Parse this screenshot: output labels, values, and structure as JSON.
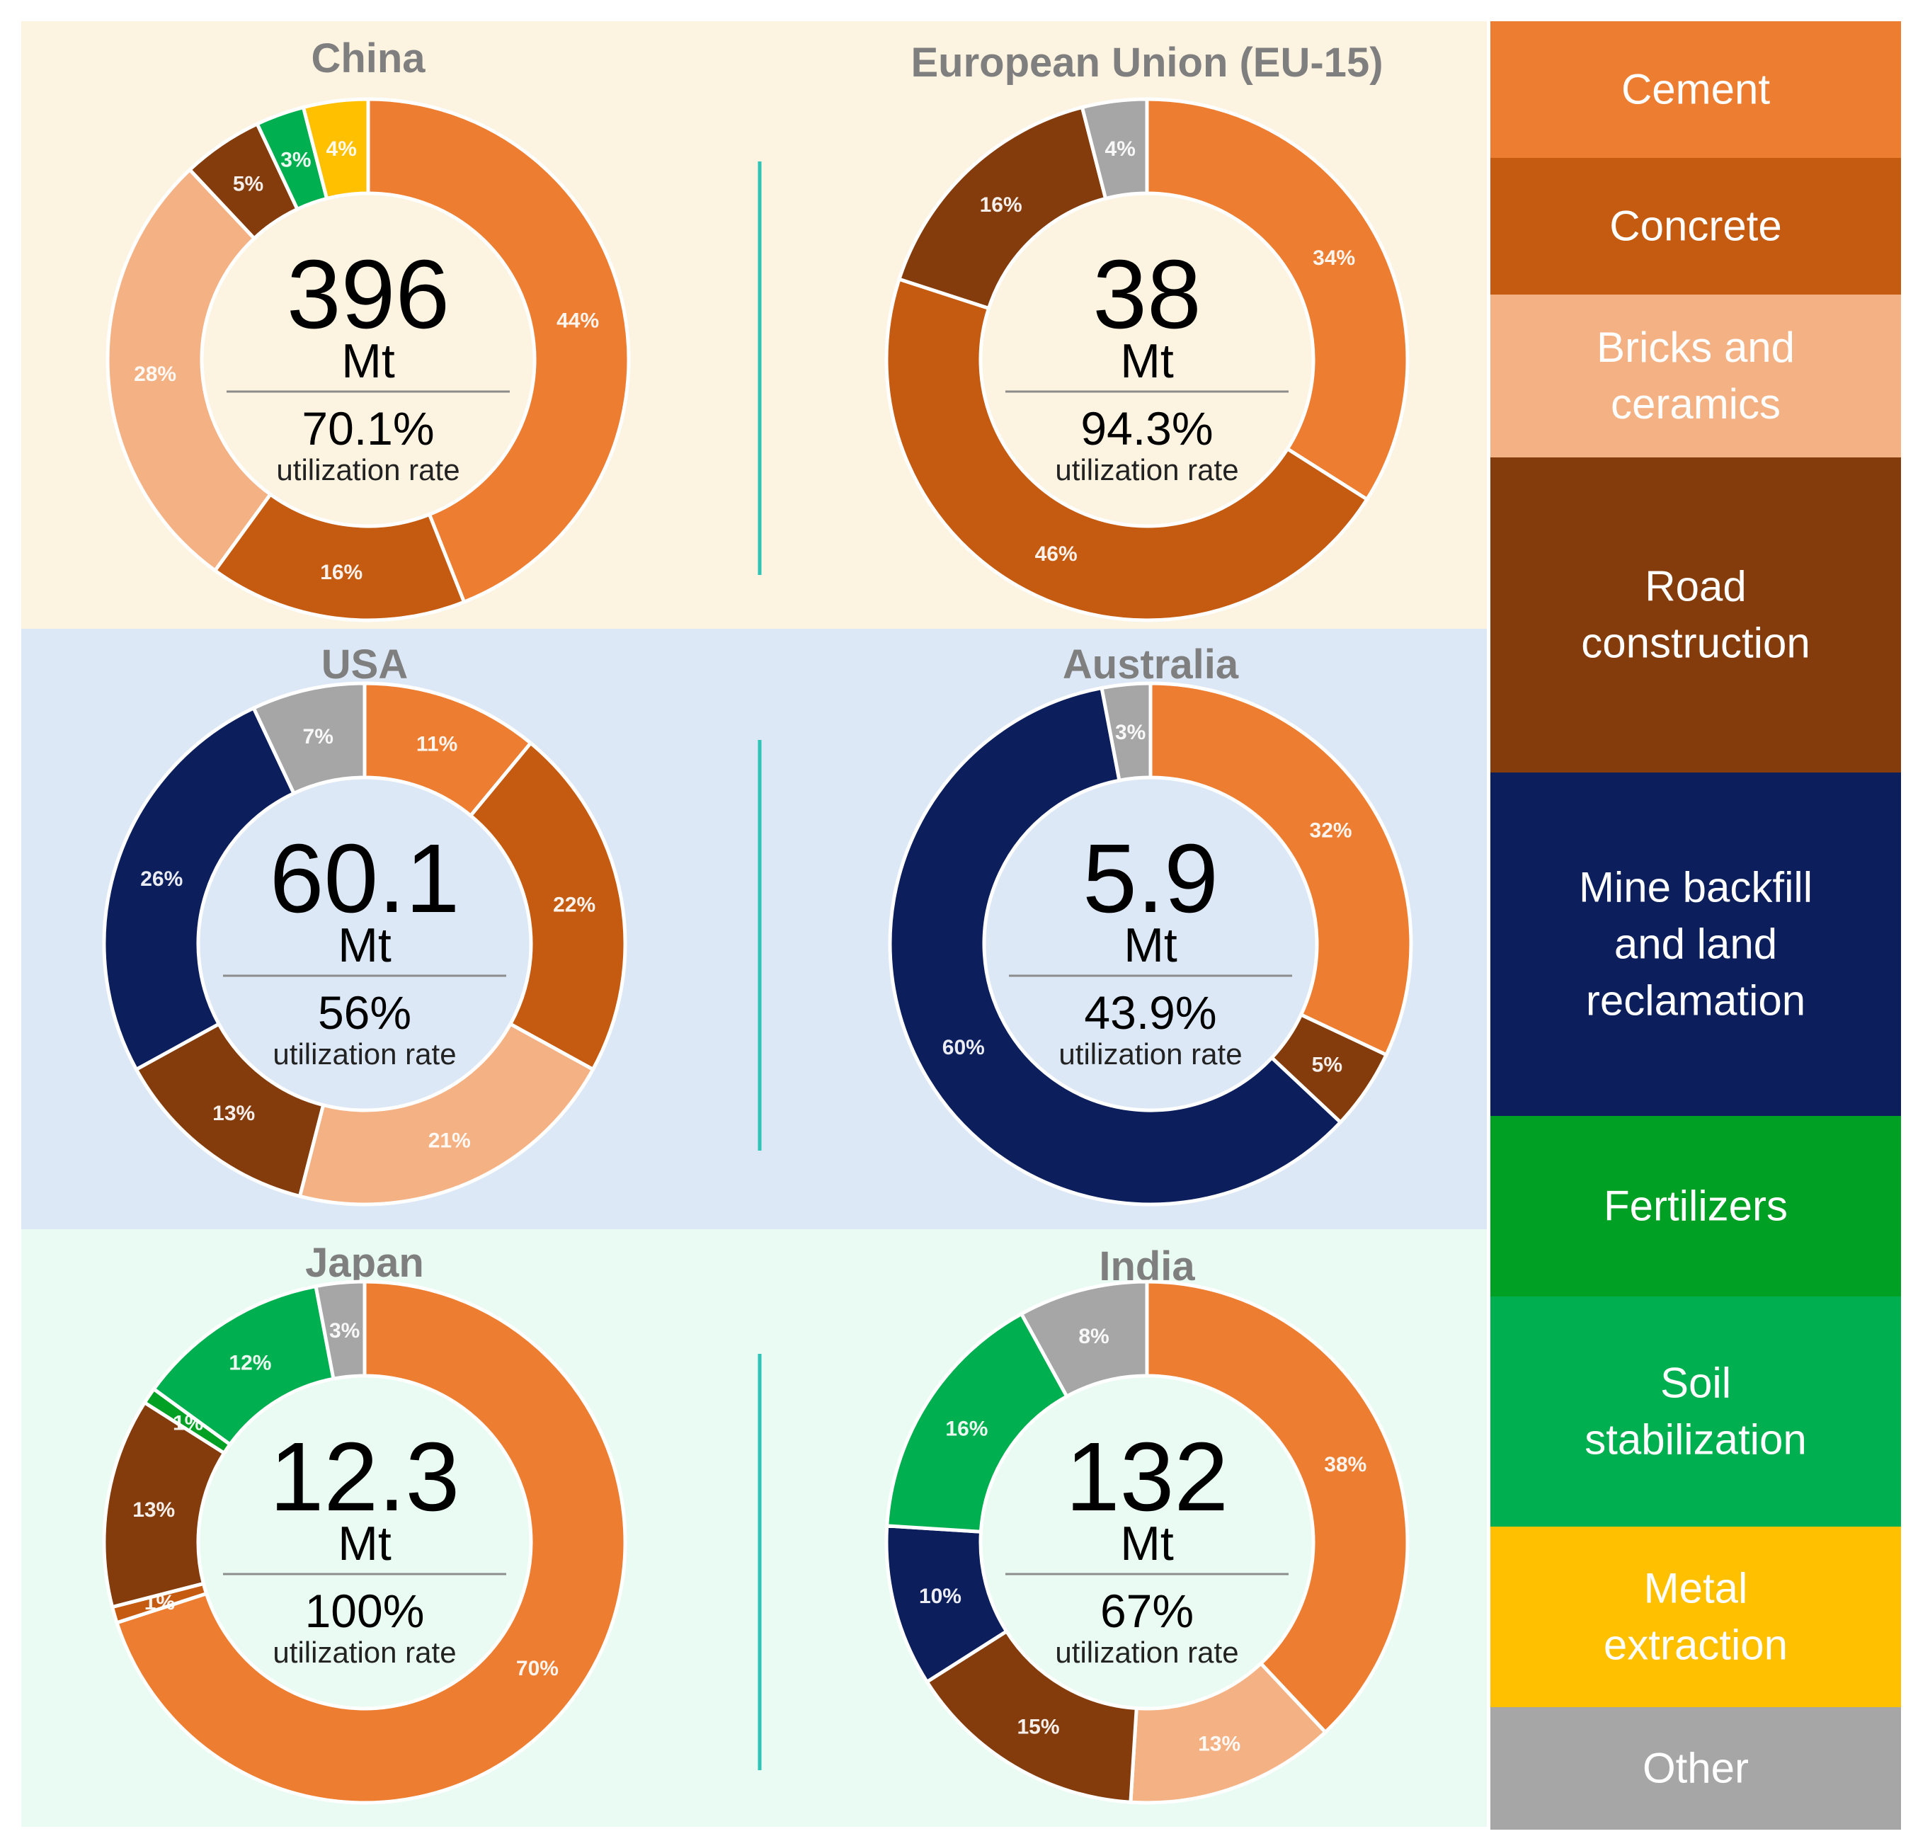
{
  "colors": {
    "Cement": "#ed7d31",
    "Concrete": "#c55a11",
    "Bricks and ceramics": "#f4b183",
    "Road construction": "#843c0c",
    "Mine backfill and land reclamation": "#0c1f5c",
    "Fertilizers": "#00a024",
    "Soil stabilization": "#00b050",
    "Metal extraction": "#ffc000",
    "Other": "#a6a6a6",
    "band_top": "#fdf3e1",
    "band_middle": "#dde8f6",
    "band_bottom": "#e9fbf3",
    "divider": "#2ec4b6",
    "title_text": "#7f7f7f",
    "legend_text": "#ffffff"
  },
  "legend": [
    {
      "category": "Cement",
      "lines": [
        "Cement"
      ]
    },
    {
      "category": "Concrete",
      "lines": [
        "Concrete"
      ]
    },
    {
      "category": "Bricks and ceramics",
      "lines": [
        "Bricks and",
        "ceramics"
      ]
    },
    {
      "category": "Road construction",
      "lines": [
        "Road",
        "construction"
      ]
    },
    {
      "category": "Mine backfill and land reclamation",
      "lines": [
        "Mine backfill",
        "and land",
        "reclamation"
      ]
    },
    {
      "category": "Fertilizers",
      "lines": [
        "Fertilizers"
      ]
    },
    {
      "category": "Soil stabilization",
      "lines": [
        "Soil",
        "stabilization"
      ]
    },
    {
      "category": "Metal extraction",
      "lines": [
        "Metal",
        "extraction"
      ]
    },
    {
      "category": "Other",
      "lines": [
        "Other"
      ]
    }
  ],
  "chart_data": [
    {
      "type": "pie",
      "title": "China",
      "total": "396",
      "unit": "Mt",
      "rate": "70.1%",
      "rate_label": "utilization rate",
      "slices": [
        {
          "category": "Cement",
          "value": 44,
          "label": "44%"
        },
        {
          "category": "Concrete",
          "value": 16,
          "label": "16%"
        },
        {
          "category": "Bricks and ceramics",
          "value": 28,
          "label": "28%"
        },
        {
          "category": "Road construction",
          "value": 5,
          "label": "5%"
        },
        {
          "category": "Soil stabilization",
          "value": 3,
          "label": "3%"
        },
        {
          "category": "Metal extraction",
          "value": 4,
          "label": "4%"
        }
      ]
    },
    {
      "type": "pie",
      "title": "European Union (EU-15)",
      "total": "38",
      "unit": "Mt",
      "rate": "94.3%",
      "rate_label": "utilization rate",
      "slices": [
        {
          "category": "Cement",
          "value": 34,
          "label": "34%"
        },
        {
          "category": "Concrete",
          "value": 46,
          "label": "46%"
        },
        {
          "category": "Road construction",
          "value": 16,
          "label": "16%"
        },
        {
          "category": "Other",
          "value": 4,
          "label": "4%"
        }
      ]
    },
    {
      "type": "pie",
      "title": "USA",
      "total": "60.1",
      "unit": "Mt",
      "rate": "56%",
      "rate_label": "utilization rate",
      "slices": [
        {
          "category": "Cement",
          "value": 11,
          "label": "11%"
        },
        {
          "category": "Concrete",
          "value": 22,
          "label": "22%"
        },
        {
          "category": "Bricks and ceramics",
          "value": 21,
          "label": "21%"
        },
        {
          "category": "Road construction",
          "value": 13,
          "label": "13%"
        },
        {
          "category": "Mine backfill and land reclamation",
          "value": 26,
          "label": "26%"
        },
        {
          "category": "Other",
          "value": 7,
          "label": "7%"
        }
      ]
    },
    {
      "type": "pie",
      "title": "Australia",
      "total": "5.9",
      "unit": "Mt",
      "rate": "43.9%",
      "rate_label": "utilization rate",
      "slices": [
        {
          "category": "Cement",
          "value": 32,
          "label": "32%"
        },
        {
          "category": "Road construction",
          "value": 5,
          "label": "5%"
        },
        {
          "category": "Mine backfill and land reclamation",
          "value": 60,
          "label": "60%"
        },
        {
          "category": "Other",
          "value": 3,
          "label": "3%"
        }
      ]
    },
    {
      "type": "pie",
      "title": "Japan",
      "total": "12.3",
      "unit": "Mt",
      "rate": "100%",
      "rate_label": "utilization rate",
      "slices": [
        {
          "category": "Cement",
          "value": 70,
          "label": "70%"
        },
        {
          "category": "Concrete",
          "value": 1,
          "label": "1%"
        },
        {
          "category": "Road construction",
          "value": 13,
          "label": "13%"
        },
        {
          "category": "Fertilizers",
          "value": 1,
          "label": "1%"
        },
        {
          "category": "Soil stabilization",
          "value": 12,
          "label": "12%"
        },
        {
          "category": "Other",
          "value": 3,
          "label": "3%"
        }
      ]
    },
    {
      "type": "pie",
      "title": "India",
      "total": "132",
      "unit": "Mt",
      "rate": "67%",
      "rate_label": "utilization rate",
      "slices": [
        {
          "category": "Cement",
          "value": 38,
          "label": "38%"
        },
        {
          "category": "Bricks and ceramics",
          "value": 13,
          "label": "13%"
        },
        {
          "category": "Road construction",
          "value": 15,
          "label": "15%"
        },
        {
          "category": "Mine backfill and land reclamation",
          "value": 10,
          "label": "10%"
        },
        {
          "category": "Soil stabilization",
          "value": 16,
          "label": "16%"
        },
        {
          "category": "Other",
          "value": 8,
          "label": "8%"
        }
      ]
    }
  ]
}
